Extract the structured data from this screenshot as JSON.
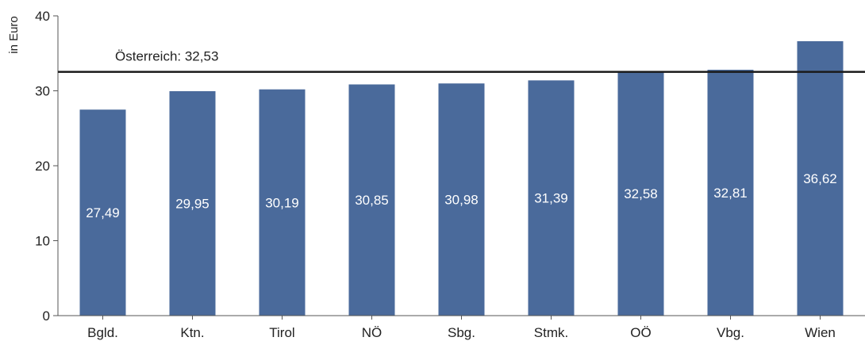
{
  "chart_data": {
    "type": "bar",
    "categories": [
      "Bgld.",
      "Ktn.",
      "Tirol",
      "NÖ",
      "Sbg.",
      "Stmk.",
      "OÖ",
      "Vbg.",
      "Wien"
    ],
    "values": [
      27.49,
      29.95,
      30.19,
      30.85,
      30.98,
      31.39,
      32.58,
      32.81,
      36.62
    ],
    "value_labels": [
      "27,49",
      "29,95",
      "30,19",
      "30,85",
      "30,98",
      "31,39",
      "32,58",
      "32,81",
      "36,62"
    ],
    "ylabel": "in Euro",
    "xlabel": "",
    "title": "",
    "ylim": [
      0,
      40
    ],
    "yticks": [
      0,
      10,
      20,
      30,
      40
    ],
    "grid": false,
    "legend": "none",
    "bar_color": "#4a6a9b",
    "reference_line": {
      "label": "Österreich: 32,53",
      "value": 32.53,
      "color": "#1a1a1a"
    }
  }
}
